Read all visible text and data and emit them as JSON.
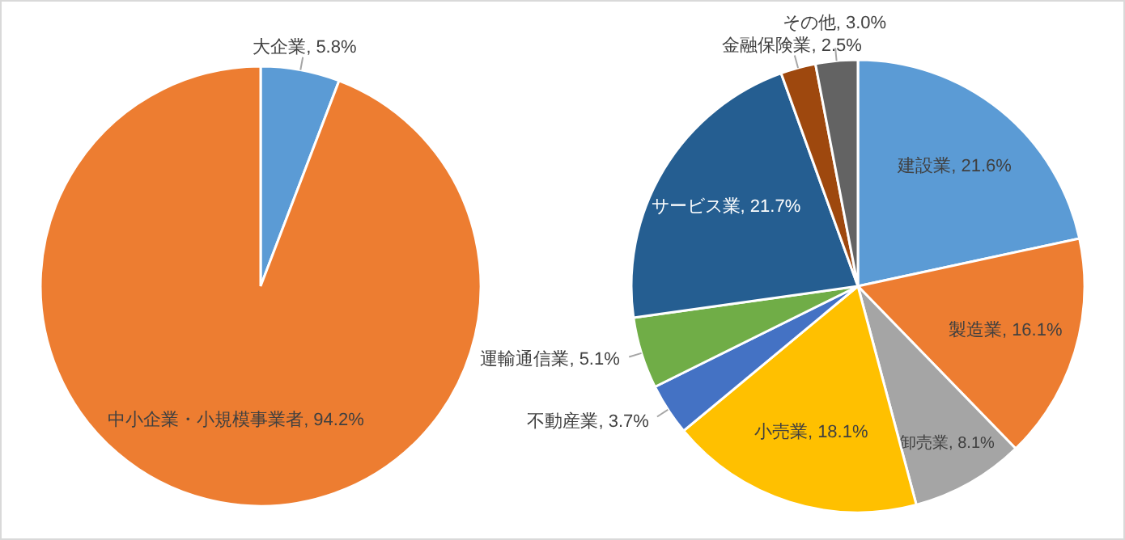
{
  "chart_data": [
    {
      "type": "pie",
      "categories": [
        "大企業",
        "中小企業・小規模事業者"
      ],
      "values": [
        5.8,
        94.2
      ],
      "value_labels": [
        "5.8%",
        "94.2%"
      ],
      "colors": [
        "#5b9bd5",
        "#ed7d31"
      ]
    },
    {
      "type": "pie",
      "categories": [
        "建設業",
        "製造業",
        "卸売業",
        "小売業",
        "不動産業",
        "運輸通信業",
        "サービス業",
        "金融保険業",
        "その他"
      ],
      "values": [
        21.6,
        16.1,
        8.1,
        18.1,
        3.7,
        5.1,
        21.7,
        2.5,
        3.0
      ],
      "value_labels": [
        "21.6%",
        "16.1%",
        "8.1%",
        "18.1%",
        "3.7%",
        "5.1%",
        "21.7%",
        "2.5%",
        "3.0%"
      ],
      "colors": [
        "#5b9bd5",
        "#ed7d31",
        "#a5a5a5",
        "#ffc000",
        "#4472c4",
        "#70ad47",
        "#255e91",
        "#9e480e",
        "#636363"
      ]
    }
  ]
}
